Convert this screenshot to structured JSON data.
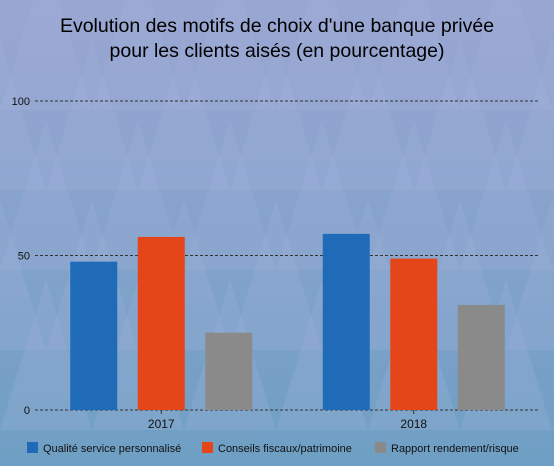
{
  "chart_data": {
    "type": "bar",
    "title_lines": [
      "Evolution des motifs de choix d'une banque privée",
      "pour les clients aisés (en pourcentage)"
    ],
    "categories": [
      "2017",
      "2018"
    ],
    "series": [
      {
        "name": "Qualité service personnalisé",
        "values": [
          48,
          57
        ],
        "color": "#1f6bb8"
      },
      {
        "name": "Conseils fiscaux/patrimoine",
        "values": [
          56,
          49
        ],
        "color": "#e4461a"
      },
      {
        "name": "Rapport rendement/risque",
        "values": [
          25,
          34
        ],
        "color": "#8a8a8a"
      }
    ],
    "ylim": [
      0,
      100
    ],
    "yticks": [
      "0",
      "50",
      "100"
    ],
    "grid": true,
    "legend": "bottom",
    "colors": {
      "background_top": "#9aa6d2",
      "background_bottom": "#6f9fc4",
      "triangle_light": "#a8b8e0",
      "gridline": "#333333",
      "text": "#111111"
    }
  }
}
